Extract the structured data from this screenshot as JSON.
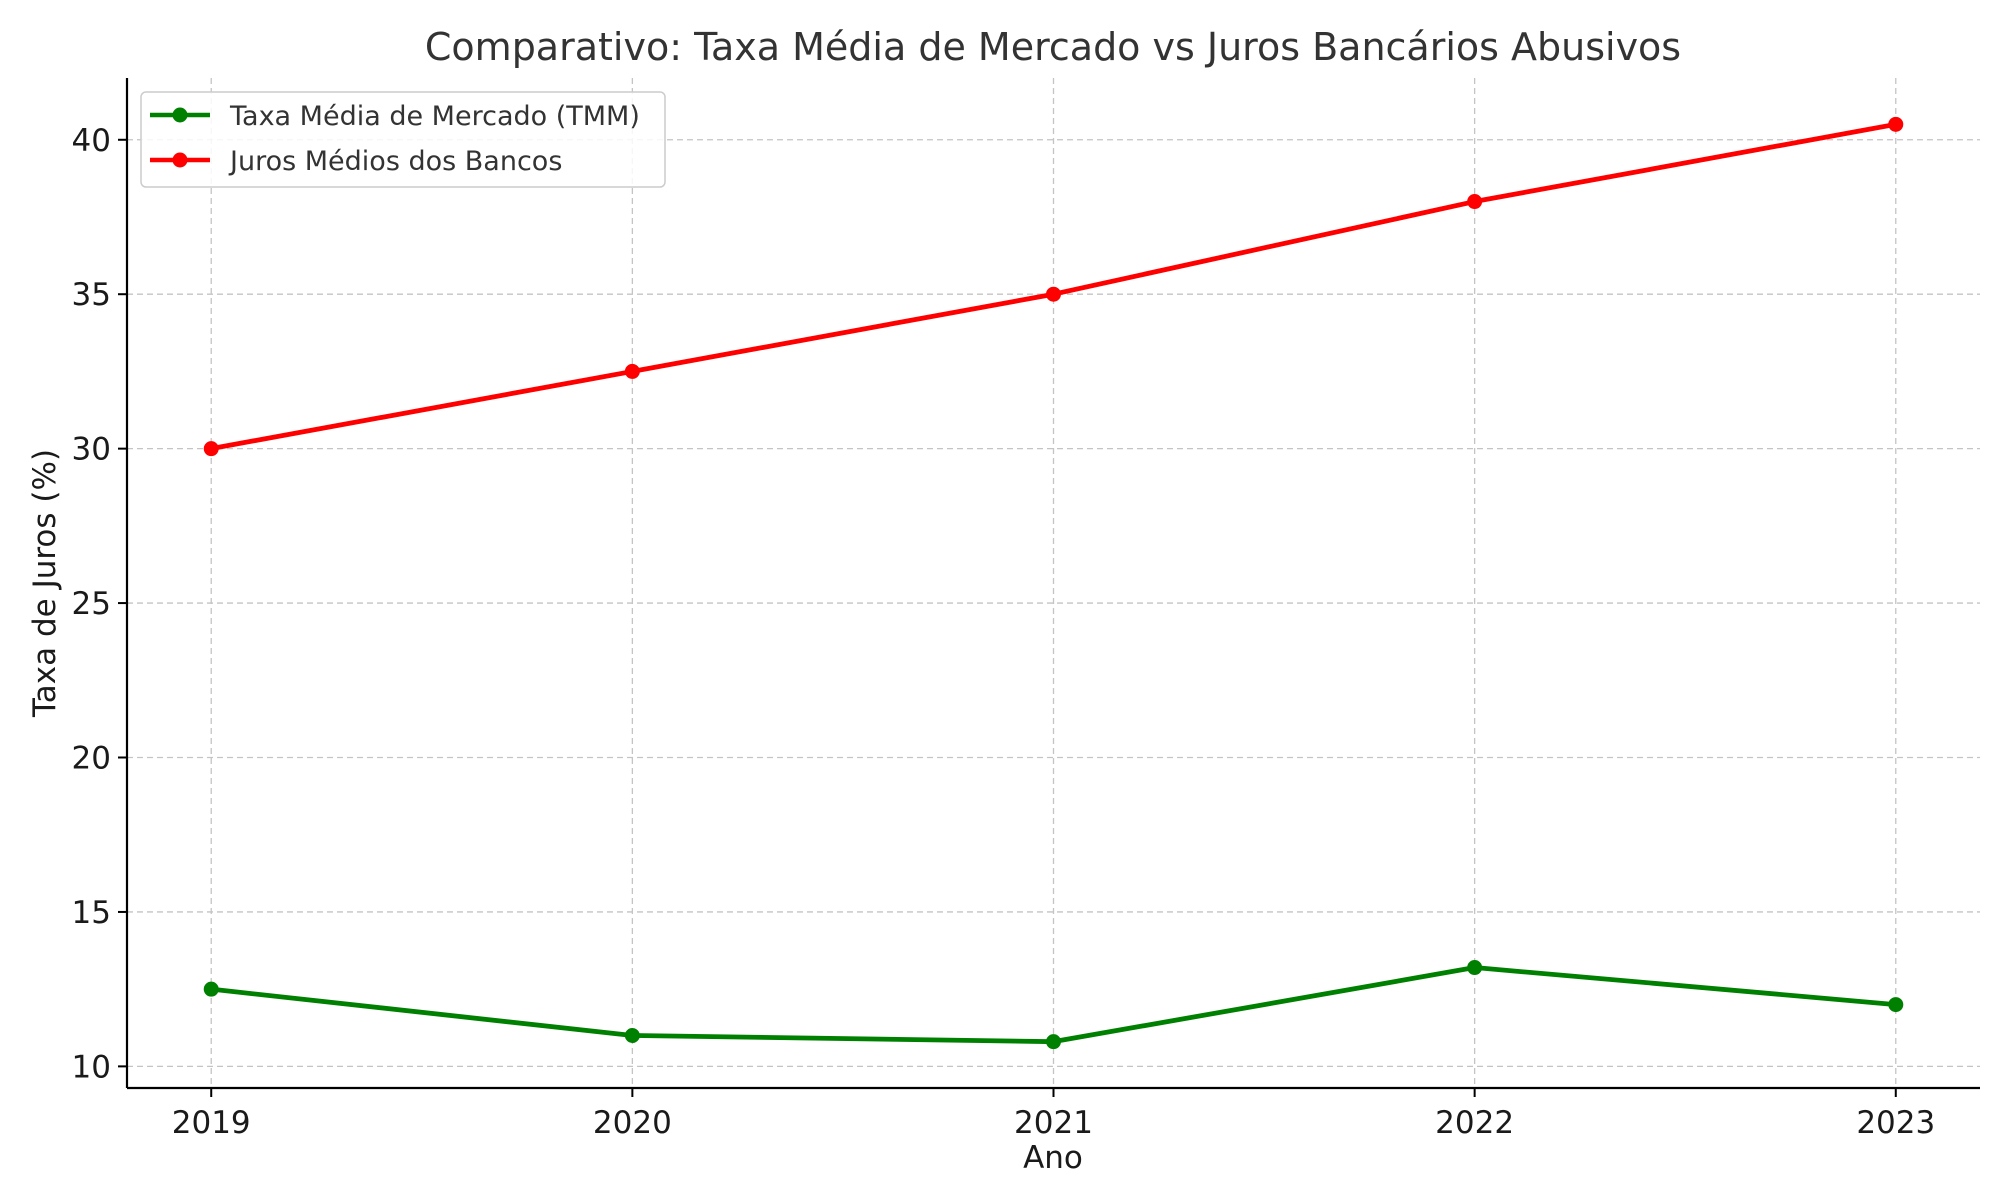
{
  "chart_data": {
    "type": "line",
    "title": "Comparativo: Taxa Média de Mercado vs Juros Bancários Abusivos",
    "xlabel": "Ano",
    "ylabel": "Taxa de Juros (%)",
    "x": [
      "2019",
      "2020",
      "2021",
      "2022",
      "2023"
    ],
    "xlim": [
      2018.8,
      2023.2
    ],
    "ylim": [
      9.3,
      42
    ],
    "yticks": [
      "10",
      "15",
      "20",
      "25",
      "30",
      "35",
      "40"
    ],
    "grid": true,
    "legend_position": "upper-left",
    "series": [
      {
        "name": "Taxa Média de Mercado (TMM)",
        "color": "#008000",
        "values": [
          12.5,
          11.0,
          10.8,
          13.2,
          12.0
        ]
      },
      {
        "name": "Juros Médios dos Bancos",
        "color": "#ff0000",
        "values": [
          30.0,
          32.5,
          35.0,
          38.0,
          40.5
        ]
      }
    ]
  }
}
